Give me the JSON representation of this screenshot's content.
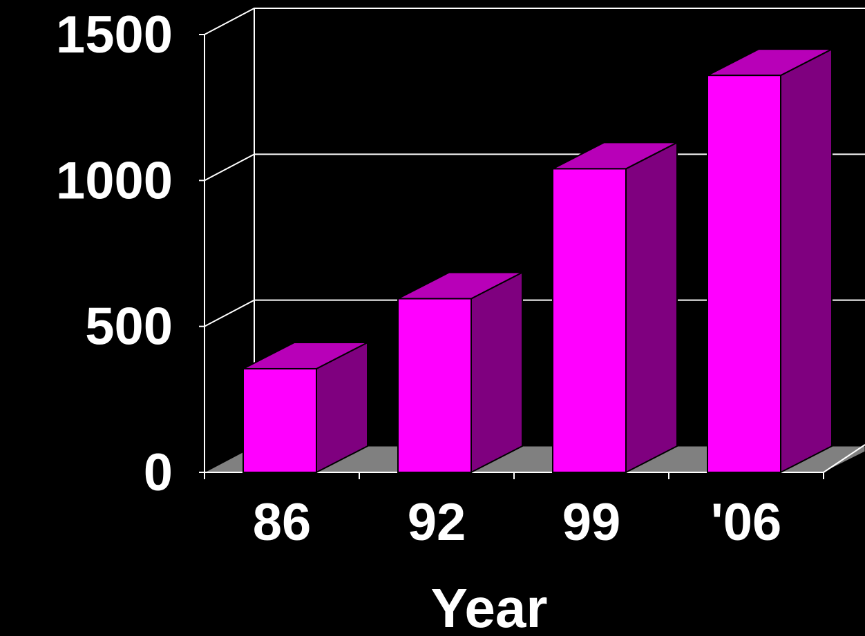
{
  "chart_data": {
    "type": "bar",
    "style": "3d",
    "categories": [
      "86",
      "92",
      "99",
      "'06"
    ],
    "values": [
      355,
      595,
      1040,
      1360
    ],
    "xlabel": "Year",
    "ylabel": "",
    "ylim": [
      0,
      1500
    ],
    "yticks": [
      "0",
      "500",
      "1000",
      "1500"
    ],
    "grid": true,
    "colors": {
      "background": "#000000",
      "bar_front": "#ff00ff",
      "bar_top": "#b800b8",
      "bar_side": "#7f007f",
      "floor": "#808080",
      "grid": "#ffffff",
      "text": "#ffffff"
    }
  }
}
